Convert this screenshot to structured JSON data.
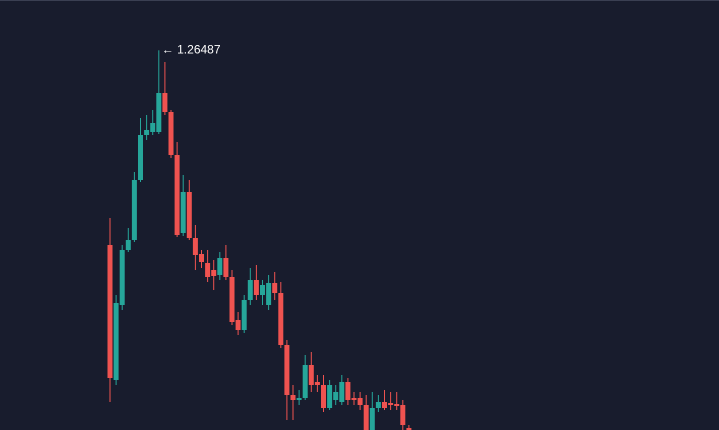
{
  "chart_data": {
    "type": "candlestick",
    "annotation": "← 1.26487",
    "up_color": "#26a69a",
    "down_color": "#ef5350",
    "ylim": [
      1.2269,
      1.2699
    ],
    "open": [
      1.2454,
      1.2319,
      1.2394,
      1.2449,
      1.2459,
      1.2519,
      1.2564,
      1.2567,
      1.2567,
      1.2606,
      1.2587,
      1.2544,
      1.2466,
      1.2507,
      1.2461,
      1.2445,
      1.2436,
      1.2429,
      1.2424,
      1.2441,
      1.2422,
      1.2379,
      1.2369,
      1.2399,
      1.2419,
      1.2404,
      1.2394,
      1.2416,
      1.2406,
      1.2354,
      1.2304,
      1.2299,
      1.2301,
      1.2334,
      1.2317,
      1.2314,
      1.2291,
      1.2299,
      1.2297,
      1.2317,
      1.2301,
      1.2301,
      1.2294,
      1.2269,
      1.2291,
      1.2297,
      1.2296,
      1.2295,
      1.2294,
      1.2271
    ],
    "high": [
      1.2481,
      1.2404,
      1.2454,
      1.2471,
      1.2527,
      1.2581,
      1.2584,
      1.2589,
      1.26487,
      1.2637,
      1.2589,
      1.2557,
      1.2524,
      1.2519,
      1.2474,
      1.2449,
      1.2449,
      1.2439,
      1.2447,
      1.2454,
      1.2429,
      1.2387,
      1.2404,
      1.2431,
      1.2434,
      1.2419,
      1.2424,
      1.2427,
      1.2417,
      1.2359,
      1.2314,
      1.2309,
      1.2344,
      1.2347,
      1.2324,
      1.2324,
      1.2319,
      1.2314,
      1.2324,
      1.2321,
      1.2307,
      1.2307,
      1.2304,
      1.2307,
      1.2304,
      1.2309,
      1.2307,
      1.2307,
      1.2299,
      1.2274
    ],
    "low": [
      1.2297,
      1.2314,
      1.2389,
      1.2447,
      1.2457,
      1.2517,
      1.2559,
      1.2564,
      1.2565,
      1.2584,
      1.2541,
      1.2462,
      1.2463,
      1.2459,
      1.2429,
      1.2431,
      1.2417,
      1.2409,
      1.2419,
      1.2419,
      1.2374,
      1.2364,
      1.2366,
      1.2394,
      1.2399,
      1.2394,
      1.2389,
      1.2399,
      1.2351,
      1.2279,
      1.2279,
      1.2294,
      1.2299,
      1.2307,
      1.2307,
      1.2287,
      1.2289,
      1.2294,
      1.2294,
      1.2294,
      1.2294,
      1.2289,
      1.2269,
      1.2269,
      1.2287,
      1.2289,
      1.2289,
      1.2289,
      1.2269,
      1.2269
    ],
    "close": [
      1.2321,
      1.2396,
      1.2449,
      1.2459,
      1.2519,
      1.2564,
      1.2569,
      1.2576,
      1.2606,
      1.2587,
      1.2544,
      1.2464,
      1.2507,
      1.2461,
      1.2444,
      1.2437,
      1.2422,
      1.2423,
      1.2441,
      1.2422,
      1.2377,
      1.2369,
      1.2399,
      1.2419,
      1.2404,
      1.2414,
      1.2416,
      1.2406,
      1.2354,
      1.2304,
      1.2299,
      1.2301,
      1.2334,
      1.2314,
      1.2314,
      1.2291,
      1.2314,
      1.2307,
      1.2317,
      1.2299,
      1.2299,
      1.2294,
      1.2269,
      1.2291,
      1.2297,
      1.2291,
      1.2294,
      1.2293,
      1.2274,
      1.2269
    ]
  }
}
